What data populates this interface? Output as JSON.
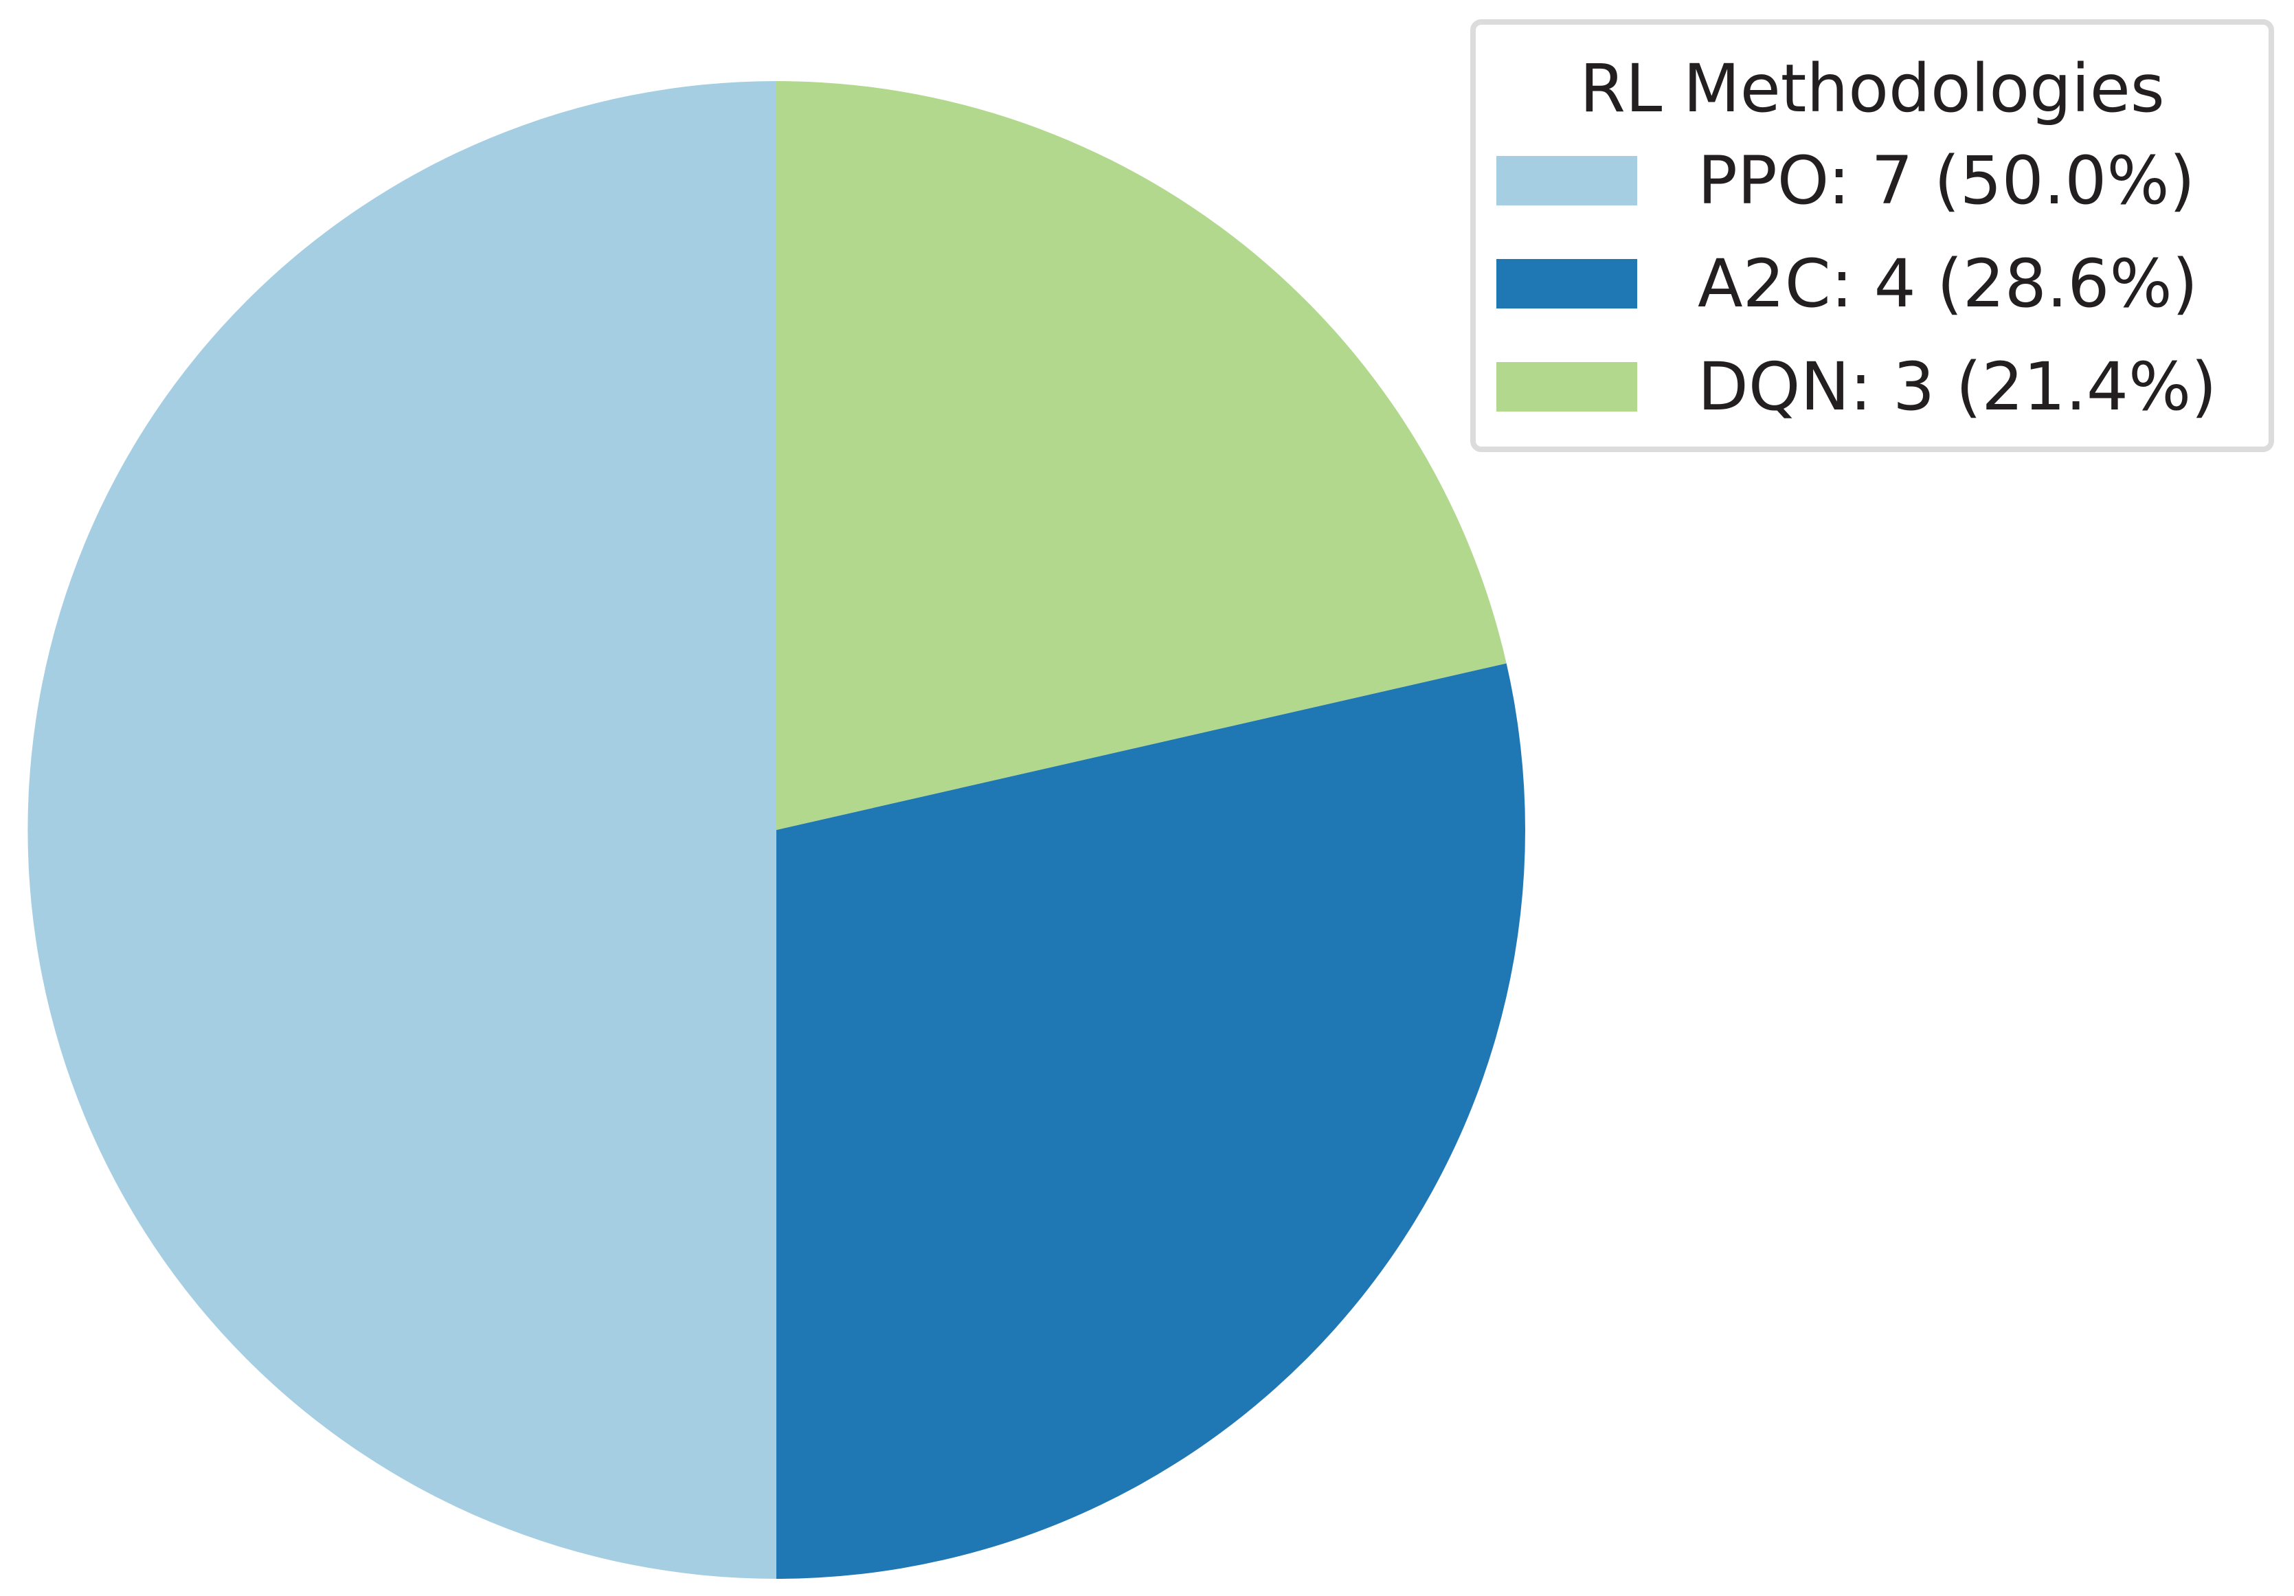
{
  "chart_data": {
    "type": "pie",
    "categories": [
      "PPO",
      "A2C",
      "DQN"
    ],
    "values": [
      7,
      4,
      3
    ],
    "percentages": [
      50.0,
      28.6,
      21.4
    ],
    "colors": [
      "#a6cee3",
      "#1f78b4",
      "#b2d88e"
    ],
    "start_angle_deg": 90,
    "direction": "counterclockwise",
    "legend": {
      "title": "RL Methodologies",
      "placement": "top-right",
      "entries": [
        {
          "label": "PPO: 7 (50.0%)",
          "color": "#a6cee3"
        },
        {
          "label": "A2C: 4 (28.6%)",
          "color": "#1f78b4"
        },
        {
          "label": "DQN: 3 (21.4%)",
          "color": "#b2d88e"
        }
      ]
    }
  }
}
